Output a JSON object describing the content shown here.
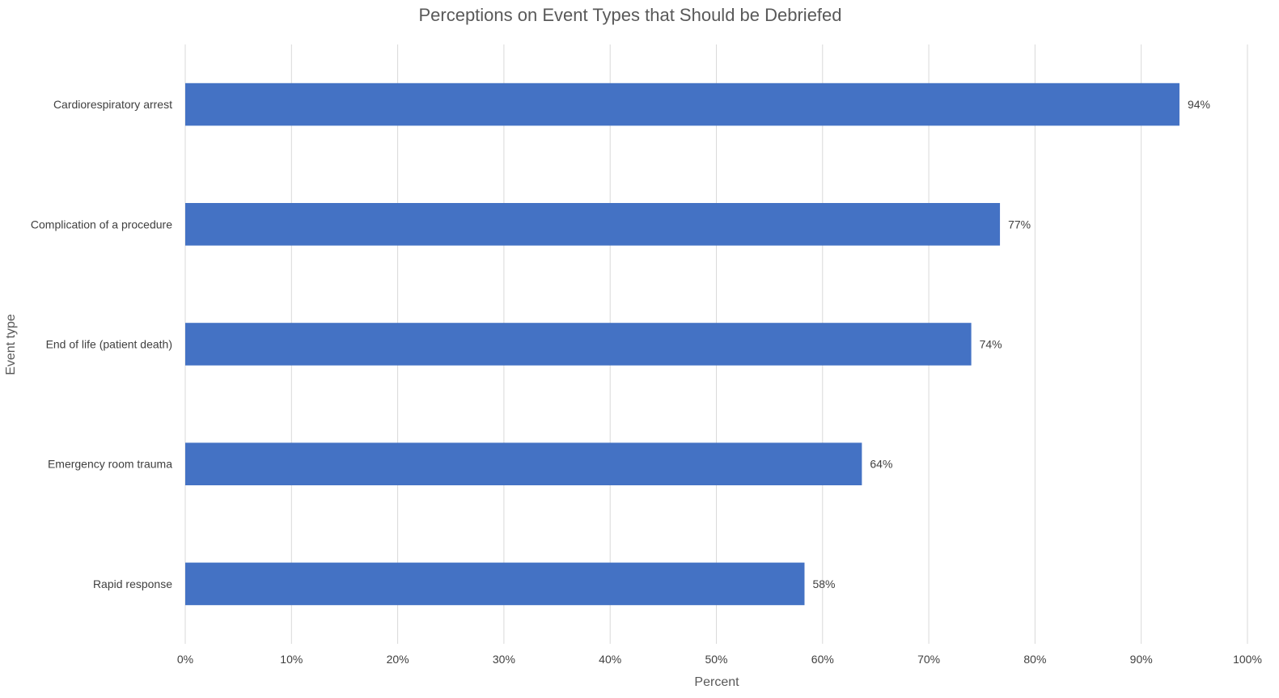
{
  "chart_data": {
    "type": "bar",
    "orientation": "horizontal",
    "title": "Perceptions on Event Types that Should be Debriefed",
    "xlabel": "Percent",
    "ylabel": "Event type",
    "categories": [
      "Cardiorespiratory arrest",
      "Complication of a procedure",
      "End of life (patient death)",
      "Emergency room trauma",
      "Rapid response"
    ],
    "values": [
      93.6,
      76.7,
      74.0,
      63.7,
      58.3
    ],
    "data_labels": [
      "94%",
      "77%",
      "74%",
      "64%",
      "58%"
    ],
    "xlim": [
      0,
      100
    ],
    "x_ticks": [
      0,
      10,
      20,
      30,
      40,
      50,
      60,
      70,
      80,
      90,
      100
    ],
    "x_tick_labels": [
      "0%",
      "10%",
      "20%",
      "30%",
      "40%",
      "50%",
      "60%",
      "70%",
      "80%",
      "90%",
      "100%"
    ],
    "grid": "vertical",
    "legend": "none",
    "bar_color": "#4472C4"
  }
}
